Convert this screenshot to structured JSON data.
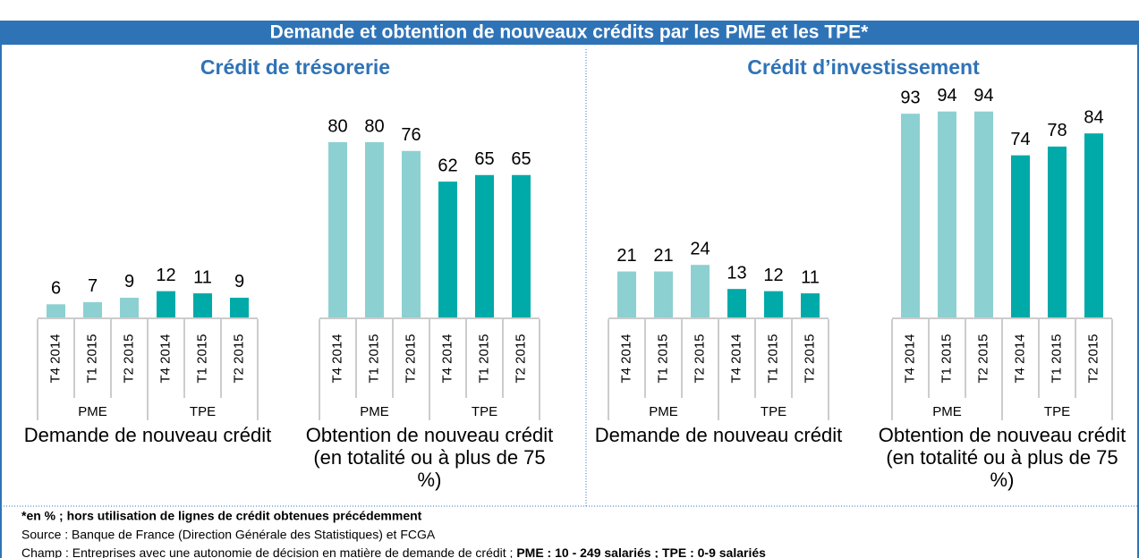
{
  "title": "Demande et obtention de nouveaux crédits par les PME et les TPE*",
  "panels": [
    "Crédit de trésorerie",
    "Crédit d’investissement"
  ],
  "notes": [
    "*en % ; hors utilisation de lignes de crédit obtenues précédemment",
    "Source : Banque de France (Direction Générale des Statistiques) et FCGA",
    "Champ : Entreprises avec une autonomie de décision en matière de demande de crédit ; ",
    "PME : 10 - 249 salariés ; TPE : 0-9 salariés"
  ],
  "chart_data": [
    {
      "type": "bar",
      "xlabel": "Demande de nouveau crédit",
      "categories": [
        "T4 2014",
        "T1 2015",
        "T2 2015"
      ],
      "ylim": [
        0,
        100
      ],
      "series": [
        {
          "name": "PME",
          "color": "#8dd0d2",
          "values": [
            6,
            7,
            9
          ]
        },
        {
          "name": "TPE",
          "color": "#00aaa8",
          "values": [
            12,
            11,
            9
          ]
        }
      ]
    },
    {
      "type": "bar",
      "xlabel": "Obtention de nouveau crédit (en totalité ou à plus de 75 %)",
      "categories": [
        "T4 2014",
        "T1 2015",
        "T2 2015"
      ],
      "ylim": [
        0,
        100
      ],
      "series": [
        {
          "name": "PME",
          "color": "#8dd0d2",
          "values": [
            80,
            80,
            76
          ]
        },
        {
          "name": "TPE",
          "color": "#00aaa8",
          "values": [
            62,
            65,
            65
          ]
        }
      ]
    },
    {
      "type": "bar",
      "xlabel": "Demande de nouveau crédit",
      "categories": [
        "T4 2014",
        "T1 2015",
        "T2 2015"
      ],
      "ylim": [
        0,
        100
      ],
      "series": [
        {
          "name": "PME",
          "color": "#8dd0d2",
          "values": [
            21,
            21,
            24
          ]
        },
        {
          "name": "TPE",
          "color": "#00aaa8",
          "values": [
            13,
            12,
            11
          ]
        }
      ]
    },
    {
      "type": "bar",
      "xlabel": "Obtention de nouveau crédit (en totalité ou à plus de 75 %)",
      "categories": [
        "T4 2014",
        "T1 2015",
        "T2 2015"
      ],
      "ylim": [
        0,
        100
      ],
      "series": [
        {
          "name": "PME",
          "color": "#8dd0d2",
          "values": [
            93,
            94,
            94
          ]
        },
        {
          "name": "TPE",
          "color": "#00aaa8",
          "values": [
            74,
            78,
            84
          ]
        }
      ]
    }
  ]
}
